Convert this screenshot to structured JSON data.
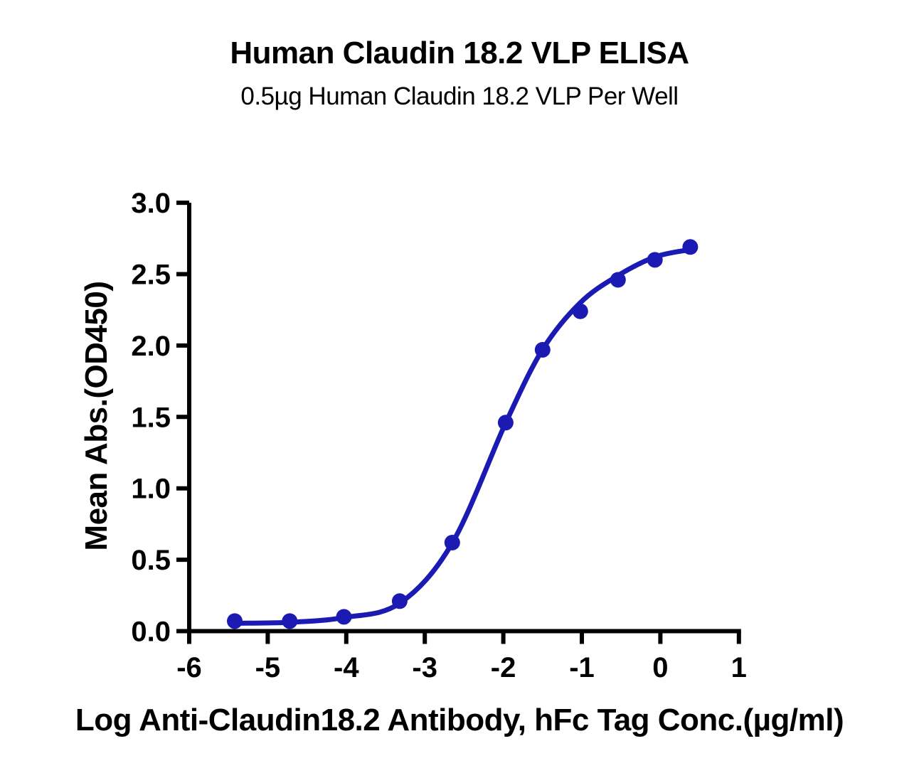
{
  "chart": {
    "title": "Human Claudin 18.2 VLP ELISA",
    "subtitle": "0.5µg Human Claudin 18.2 VLP Per Well",
    "xlabel": "Log Anti-Claudin18.2 Antibody, hFc Tag Conc.(µg/ml)",
    "ylabel": "Mean Abs.(OD450)"
  },
  "chart_data": {
    "type": "scatter",
    "title": "Human Claudin 18.2 VLP ELISA",
    "subtitle": "0.5µg Human Claudin 18.2 VLP Per Well",
    "xlabel": "Log Anti-Claudin18.2 Antibody, hFc Tag Conc.(µg/ml)",
    "ylabel": "Mean Abs.(OD450)",
    "xlim": [
      -6,
      1
    ],
    "ylim": [
      0.0,
      3.0
    ],
    "x_ticks": [
      -6,
      -5,
      -4,
      -3,
      -2,
      -1,
      0,
      1
    ],
    "x_tick_labels": [
      "-6",
      "-5",
      "-4",
      "-3",
      "-2",
      "-1",
      "0",
      "1"
    ],
    "y_ticks": [
      0.0,
      0.5,
      1.0,
      1.5,
      2.0,
      2.5,
      3.0
    ],
    "y_tick_labels": [
      "0.0",
      "0.5",
      "1.0",
      "1.5",
      "2.0",
      "2.5",
      "3.0"
    ],
    "grid": false,
    "legend": null,
    "series": [
      {
        "name": "Anti-Claudin18.2 Antibody, hFc Tag",
        "marker": "circle",
        "color": "#1b1bb4",
        "points": [
          {
            "x": -5.42,
            "y": 0.07
          },
          {
            "x": -4.72,
            "y": 0.07
          },
          {
            "x": -4.03,
            "y": 0.1
          },
          {
            "x": -3.32,
            "y": 0.21
          },
          {
            "x": -2.65,
            "y": 0.62
          },
          {
            "x": -1.97,
            "y": 1.46
          },
          {
            "x": -1.5,
            "y": 1.97
          },
          {
            "x": -1.02,
            "y": 2.24
          },
          {
            "x": -0.54,
            "y": 2.46
          },
          {
            "x": -0.07,
            "y": 2.6
          },
          {
            "x": 0.38,
            "y": 2.69
          }
        ],
        "fit_curve": [
          {
            "x": -5.42,
            "y": 0.055
          },
          {
            "x": -4.72,
            "y": 0.062
          },
          {
            "x": -4.03,
            "y": 0.095
          },
          {
            "x": -3.32,
            "y": 0.195
          },
          {
            "x": -2.65,
            "y": 0.617
          },
          {
            "x": -1.97,
            "y": 1.458
          },
          {
            "x": -1.5,
            "y": 1.972
          },
          {
            "x": -1.02,
            "y": 2.3
          },
          {
            "x": -0.54,
            "y": 2.49
          },
          {
            "x": -0.07,
            "y": 2.62
          },
          {
            "x": 0.355,
            "y": 2.67
          }
        ]
      }
    ]
  },
  "colors": {
    "accent_blue": "#1b1bb4",
    "axis": "#000000",
    "background": "#ffffff"
  }
}
